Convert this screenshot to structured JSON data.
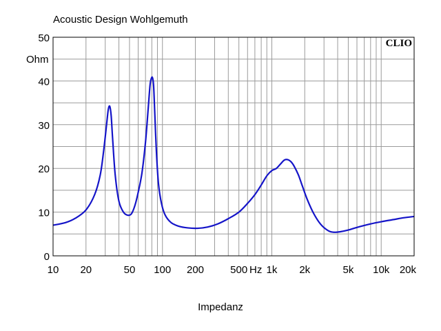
{
  "chart_data": {
    "type": "line",
    "title": "Acoustic Design Wohlgemuth",
    "xlabel": "Impedanz",
    "ylabel": "Ohm",
    "brand": "CLIO",
    "x_scale": "log",
    "xlim": [
      10,
      20000
    ],
    "ylim": [
      0,
      50
    ],
    "grid": true,
    "y_ticks": [
      0,
      10,
      20,
      30,
      40,
      50
    ],
    "x_ticks": [
      {
        "value": 10,
        "label": "10"
      },
      {
        "value": 20,
        "label": "20"
      },
      {
        "value": 50,
        "label": "50"
      },
      {
        "value": 100,
        "label": "100"
      },
      {
        "value": 200,
        "label": "200"
      },
      {
        "value": 500,
        "label": "500"
      },
      {
        "value": 1000,
        "label": "1k"
      },
      {
        "value": 2000,
        "label": "2k"
      },
      {
        "value": 5000,
        "label": "5k"
      },
      {
        "value": 10000,
        "label": "10k"
      },
      {
        "value": 20000,
        "label": "20k"
      }
    ],
    "x_unit_label": "Hz",
    "line_color": "#1414c8",
    "series": [
      {
        "x": [
          10,
          13,
          16,
          20,
          24,
          27,
          29,
          31,
          32,
          33,
          34,
          35,
          37,
          40,
          44,
          48,
          52,
          56,
          60,
          65,
          70,
          74,
          77,
          79,
          81,
          83,
          85,
          88,
          92,
          98,
          106,
          120,
          140,
          170,
          210,
          260,
          320,
          400,
          500,
          600,
          700,
          800,
          900,
          1000,
          1100,
          1200,
          1300,
          1400,
          1500,
          1600,
          1750,
          1900,
          2100,
          2400,
          2800,
          3300,
          3700,
          4200,
          5000,
          6000,
          8000,
          10000,
          13000,
          16000,
          20000
        ],
        "y": [
          7.0,
          7.6,
          8.6,
          10.5,
          14.0,
          18.5,
          24.0,
          30.5,
          33.5,
          34.2,
          32.0,
          27.0,
          18.5,
          12.5,
          10.0,
          9.3,
          9.6,
          11.5,
          14.5,
          19.0,
          26.0,
          33.5,
          39.0,
          40.5,
          40.8,
          39.0,
          33.0,
          24.0,
          16.5,
          12.0,
          9.3,
          7.6,
          6.8,
          6.4,
          6.3,
          6.6,
          7.3,
          8.5,
          10.0,
          12.0,
          14.0,
          16.2,
          18.3,
          19.5,
          20.0,
          21.0,
          21.9,
          22.0,
          21.5,
          20.5,
          18.5,
          16.0,
          13.0,
          9.8,
          7.2,
          5.7,
          5.4,
          5.5,
          5.9,
          6.5,
          7.3,
          7.8,
          8.3,
          8.7,
          9.0
        ]
      }
    ]
  }
}
